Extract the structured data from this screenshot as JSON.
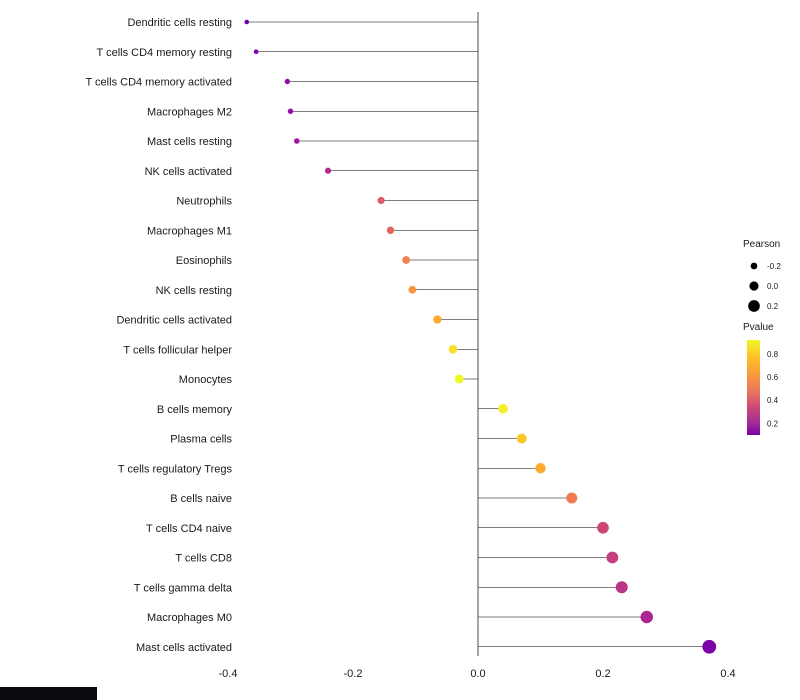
{
  "chart_data": {
    "type": "scatter",
    "style": "lollipop",
    "title": "",
    "xlabel": "",
    "ylabel": "",
    "xlim": [
      -0.45,
      0.45
    ],
    "x_ticks": [
      -0.4,
      -0.2,
      0.0,
      0.2,
      0.4
    ],
    "x_tick_labels": [
      "-0.4",
      "-0.2",
      "0.0",
      "0.2",
      "0.4"
    ],
    "grid": false,
    "legend_position": "right",
    "points": [
      {
        "label": "Dendritic cells resting",
        "pearson": -0.37,
        "pvalue": 0.08,
        "color": "#6e00a8"
      },
      {
        "label": "T cells CD4 memory resting",
        "pearson": -0.355,
        "pvalue": 0.12,
        "color": "#7e03a8"
      },
      {
        "label": "T cells CD4 memory activated",
        "pearson": -0.305,
        "pvalue": 0.16,
        "color": "#8f0da4"
      },
      {
        "label": "Macrophages M2",
        "pearson": -0.3,
        "pvalue": 0.17,
        "color": "#930fa3"
      },
      {
        "label": "Mast cells resting",
        "pearson": -0.29,
        "pvalue": 0.19,
        "color": "#9c179e"
      },
      {
        "label": "NK cells activated",
        "pearson": -0.24,
        "pvalue": 0.28,
        "color": "#b02991"
      },
      {
        "label": "Neutrophils",
        "pearson": -0.155,
        "pvalue": 0.52,
        "color": "#db5c68"
      },
      {
        "label": "Macrophages M1",
        "pearson": -0.14,
        "pvalue": 0.55,
        "color": "#e26561"
      },
      {
        "label": "Eosinophils",
        "pearson": -0.115,
        "pvalue": 0.64,
        "color": "#f0804e"
      },
      {
        "label": "NK cells resting",
        "pearson": -0.105,
        "pvalue": 0.69,
        "color": "#f89540"
      },
      {
        "label": "Dendritic cells activated",
        "pearson": -0.065,
        "pvalue": 0.76,
        "color": "#fdab33"
      },
      {
        "label": "T cells follicular helper",
        "pearson": -0.04,
        "pvalue": 0.86,
        "color": "#f8df25"
      },
      {
        "label": "Monocytes",
        "pearson": -0.03,
        "pvalue": 0.91,
        "color": "#f0f921"
      },
      {
        "label": "B cells memory",
        "pearson": 0.04,
        "pvalue": 0.89,
        "color": "#f3ef26"
      },
      {
        "label": "Plasma cells",
        "pearson": 0.07,
        "pvalue": 0.81,
        "color": "#fcc627"
      },
      {
        "label": "T cells regulatory Tregs",
        "pearson": 0.1,
        "pvalue": 0.75,
        "color": "#fdaa32"
      },
      {
        "label": "B cells naive",
        "pearson": 0.15,
        "pvalue": 0.59,
        "color": "#ee7a4f"
      },
      {
        "label": "T cells CD4 naive",
        "pearson": 0.2,
        "pvalue": 0.44,
        "color": "#cc4778"
      },
      {
        "label": "T cells CD8",
        "pearson": 0.215,
        "pvalue": 0.41,
        "color": "#c5407e"
      },
      {
        "label": "T cells gamma delta",
        "pearson": 0.23,
        "pvalue": 0.37,
        "color": "#bb3488"
      },
      {
        "label": "Macrophages M0",
        "pearson": 0.27,
        "pvalue": 0.3,
        "color": "#ad2793"
      },
      {
        "label": "Mast cells activated",
        "pearson": 0.37,
        "pvalue": 0.11,
        "color": "#7a02a8"
      }
    ],
    "legends": {
      "size": {
        "title": "Pearson",
        "values": [
          -0.2,
          0.0,
          0.2
        ],
        "labels": [
          "-0.2",
          "0.0",
          "0.2"
        ],
        "dot_color": "#000000"
      },
      "color": {
        "title": "Pvalue",
        "tick_values": [
          0.8,
          0.6,
          0.4,
          0.2
        ],
        "tick_labels": [
          "0.8",
          "0.6",
          "0.4",
          "0.2"
        ],
        "range_top": 0.92,
        "range_bottom": 0.1,
        "gradient": [
          {
            "o": 0.0,
            "c": "#f2f626"
          },
          {
            "o": 0.18,
            "c": "#fdc128"
          },
          {
            "o": 0.38,
            "c": "#f9963f"
          },
          {
            "o": 0.55,
            "c": "#e8735e"
          },
          {
            "o": 0.72,
            "c": "#ca4679"
          },
          {
            "o": 0.87,
            "c": "#a22d94"
          },
          {
            "o": 1.0,
            "c": "#7a02a8"
          }
        ]
      }
    },
    "axis_color": "#000000",
    "stem_color": "#000000"
  }
}
